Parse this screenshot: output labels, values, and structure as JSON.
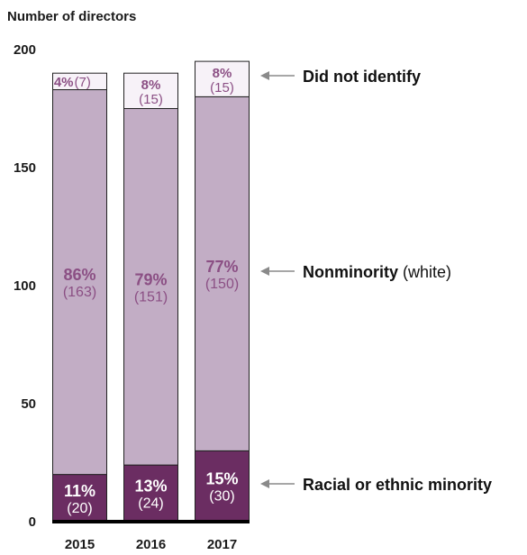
{
  "chart_data": {
    "type": "bar",
    "stacked": true,
    "ylabel": "Number of directors",
    "ylim": [
      0,
      200
    ],
    "yticks": [
      0,
      50,
      100,
      150,
      200
    ],
    "categories": [
      "2015",
      "2016",
      "2017"
    ],
    "series": [
      {
        "name": "Racial or ethnic minority",
        "values": [
          20,
          24,
          30
        ],
        "percent_labels": [
          "11%",
          "13%",
          "15%"
        ],
        "count_labels": [
          "(20)",
          "(24)",
          "(30)"
        ],
        "color": "#6b2d62"
      },
      {
        "name": "Nonminority",
        "name_suffix": "(white)",
        "values": [
          163,
          151,
          150
        ],
        "percent_labels": [
          "86%",
          "79%",
          "77%"
        ],
        "count_labels": [
          "(163)",
          "(151)",
          "(150)"
        ],
        "color": "#c2adc5"
      },
      {
        "name": "Did not identify",
        "values": [
          7,
          15,
          15
        ],
        "percent_labels": [
          "4%",
          "8%",
          "8%"
        ],
        "count_labels": [
          "(7)",
          "(15)",
          "(15)"
        ],
        "color": "#f7f2f8"
      }
    ],
    "legend_placement": "right, arrows pointing to segments",
    "grid": false
  }
}
